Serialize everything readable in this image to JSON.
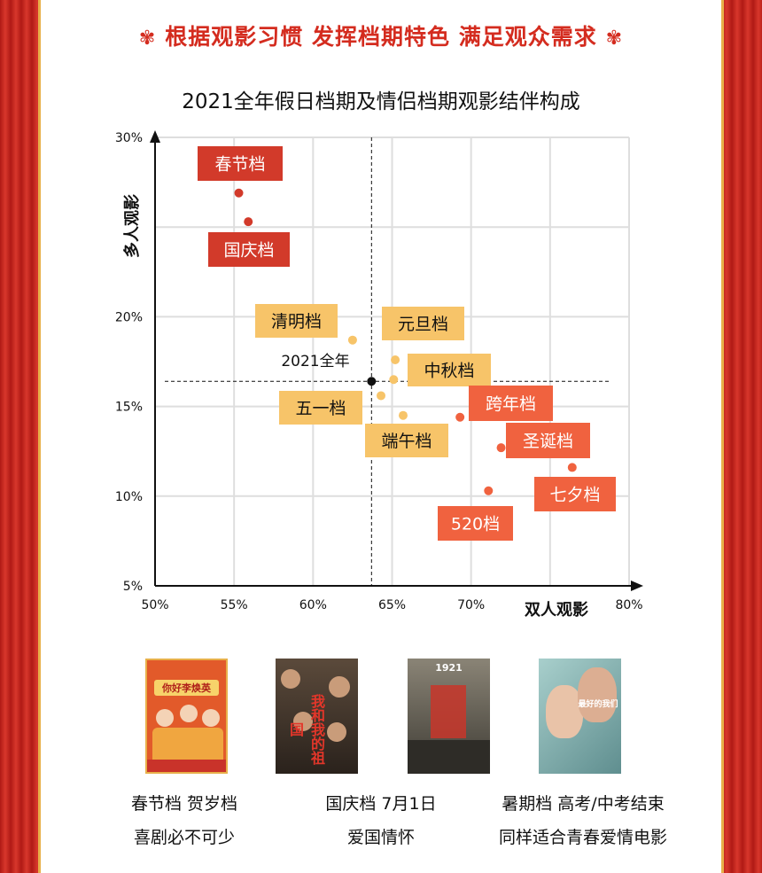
{
  "headline": "根据观影习惯 发挥档期特色 满足观众需求",
  "headline_icon": "flower-icon",
  "chart_data": {
    "type": "scatter",
    "title": "2021全年假日档期及情侣档期观影结伴构成",
    "xlabel": "双人观影",
    "ylabel": "多人观影",
    "xlim": [
      50,
      80
    ],
    "ylim": [
      5,
      30
    ],
    "x_ticks": [
      "50%",
      "55%",
      "60%",
      "65%",
      "70%",
      "80%"
    ],
    "y_ticks": [
      "30%",
      "20%",
      "15%",
      "10%",
      "5%"
    ],
    "grid": true,
    "reference_point": {
      "name": "2021全年",
      "x": 63.7,
      "y": 16.4,
      "color": "#111111"
    },
    "points": [
      {
        "name": "春节档",
        "x": 55.3,
        "y": 26.9,
        "color": "#d23a2a"
      },
      {
        "name": "国庆档",
        "x": 55.9,
        "y": 25.3,
        "color": "#d23a2a"
      },
      {
        "name": "清明档",
        "x": 62.5,
        "y": 18.7,
        "color": "#f7c469"
      },
      {
        "name": "元旦档",
        "x": 65.2,
        "y": 17.6,
        "color": "#f7c469"
      },
      {
        "name": "中秋档",
        "x": 65.1,
        "y": 16.5,
        "color": "#f7c469"
      },
      {
        "name": "五一档",
        "x": 64.3,
        "y": 15.6,
        "color": "#f7c469"
      },
      {
        "name": "端午档",
        "x": 65.7,
        "y": 14.5,
        "color": "#f7c469"
      },
      {
        "name": "跨年档",
        "x": 69.3,
        "y": 14.4,
        "color": "#f0623f"
      },
      {
        "name": "圣诞档",
        "x": 71.9,
        "y": 12.7,
        "color": "#f0623f"
      },
      {
        "name": "七夕档",
        "x": 76.4,
        "y": 11.6,
        "color": "#f0623f"
      },
      {
        "name": "520档",
        "x": 71.1,
        "y": 10.3,
        "color": "#f0623f"
      }
    ]
  },
  "posters": [
    {
      "name": "你好李焕英",
      "icon": "movie-poster-icon",
      "bg": "#e25a2a"
    },
    {
      "name": "我和我的祖国",
      "icon": "movie-poster-icon",
      "bg": "#4a3a2e"
    },
    {
      "name": "1921",
      "icon": "movie-poster-icon",
      "bg": "#6f6a5e"
    },
    {
      "name": "最好的我们",
      "icon": "movie-poster-icon",
      "bg": "#8fb7b6"
    }
  ],
  "captions": [
    {
      "line1": "春节档 贺岁档",
      "line2": "喜剧必不可少"
    },
    {
      "line1": "国庆档 7月1日",
      "line2": "爱国情怀"
    },
    {
      "line1": "暑期档 高考/中考结束",
      "line2": "同样适合青春爱情电影"
    }
  ]
}
